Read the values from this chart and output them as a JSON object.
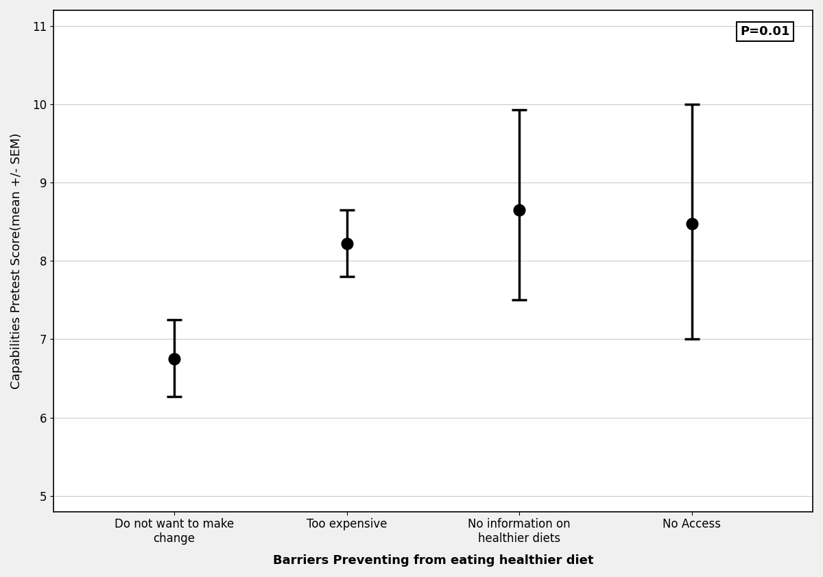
{
  "categories": [
    "Do not want to make\nchange",
    "Too expensive",
    "No information on\nhealthier diets",
    "No Access"
  ],
  "means": [
    6.75,
    8.22,
    8.65,
    8.48
  ],
  "lower_errors": [
    0.48,
    0.42,
    1.15,
    1.48
  ],
  "upper_errors": [
    0.5,
    0.43,
    1.28,
    1.52
  ],
  "xlabel": "Barriers Preventing from eating healthier diet",
  "ylabel": "Capabilities Pretest Score(mean +/- SEM)",
  "ylim": [
    4.8,
    11.2
  ],
  "yticks": [
    5,
    6,
    7,
    8,
    9,
    10,
    11
  ],
  "pvalue_text": "P=0.01",
  "background_color": "#f0f0f0",
  "plot_bg_color": "#ffffff",
  "marker_color": "#000000",
  "errorbar_color": "#000000",
  "marker_size": 12,
  "capsize": 8,
  "linewidth": 2.5,
  "title_fontsize": 13,
  "label_fontsize": 13,
  "tick_fontsize": 12,
  "pvalue_fontsize": 13
}
